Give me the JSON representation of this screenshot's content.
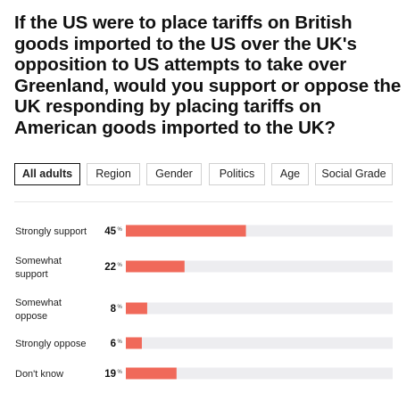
{
  "question": "If the US were to place tariffs on British goods imported to the US over the UK's opposition to US attempts to take over Greenland, would you support or oppose the UK responding by placing tariffs on American goods imported to the UK?",
  "tabs": [
    {
      "label": "All adults",
      "active": true
    },
    {
      "label": "Region",
      "active": false
    },
    {
      "label": "Gender",
      "active": false
    },
    {
      "label": "Politics",
      "active": false
    },
    {
      "label": "Age",
      "active": false
    },
    {
      "label": "Social Grade",
      "active": false
    }
  ],
  "colors": {
    "bar": "#f0695a",
    "track": "#ededf0"
  },
  "chart_data": {
    "type": "bar",
    "orientation": "horizontal",
    "unit": "%",
    "xlim": [
      0,
      100
    ],
    "categories": [
      [
        "Strongly support"
      ],
      [
        "Somewhat",
        "support"
      ],
      [
        "Somewhat",
        "oppose"
      ],
      [
        "Strongly oppose"
      ],
      [
        "Don't know"
      ]
    ],
    "values": [
      45,
      22,
      8,
      6,
      19
    ]
  }
}
